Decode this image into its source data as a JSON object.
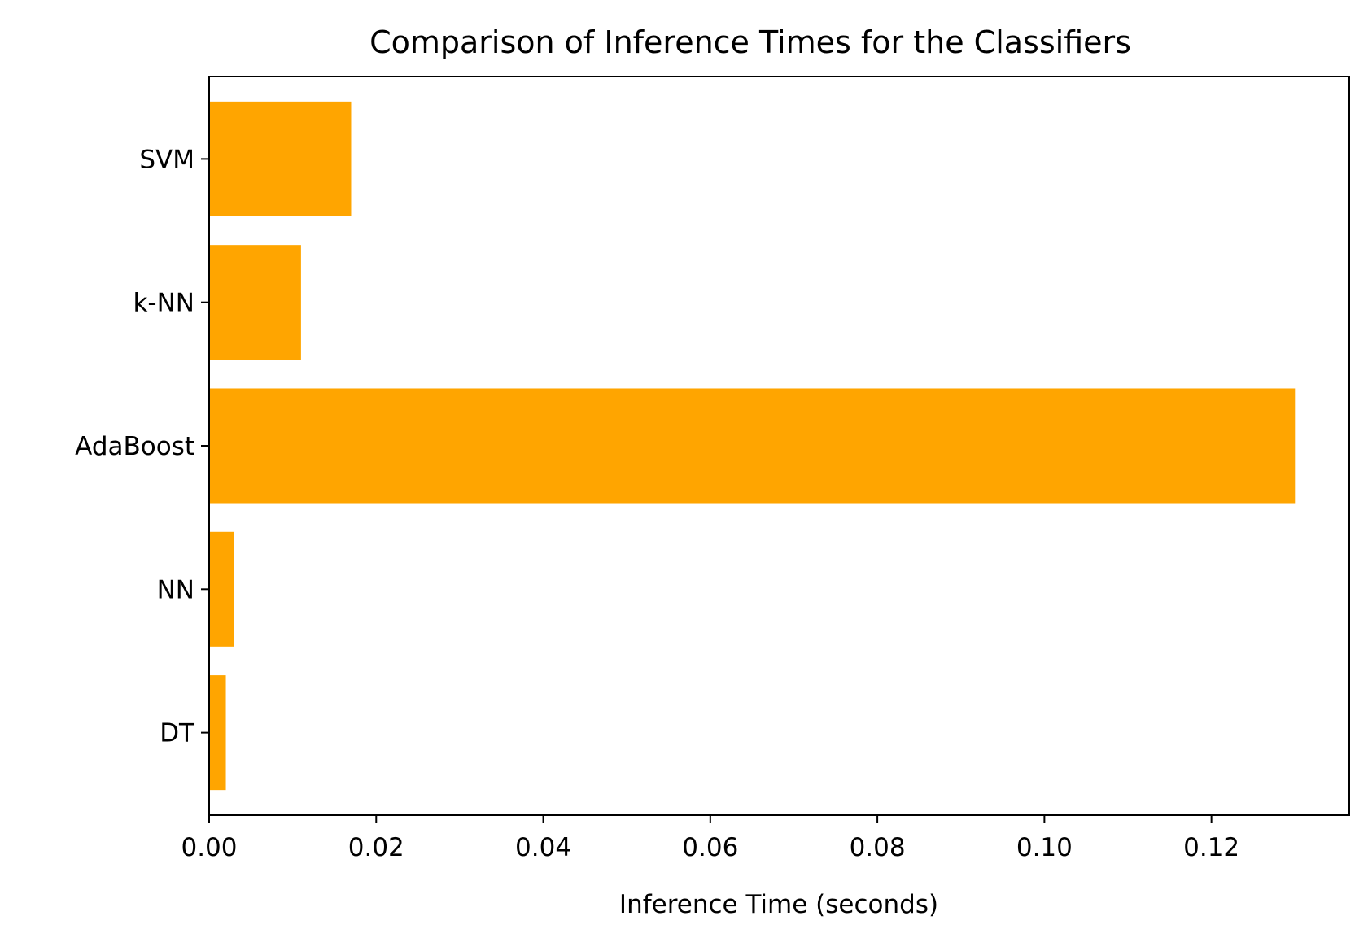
{
  "chart_data": {
    "type": "bar",
    "orientation": "horizontal",
    "title": "Comparison of Inference Times for the Classifiers",
    "xlabel": "Inference Time (seconds)",
    "ylabel": "",
    "categories": [
      "DT",
      "NN",
      "AdaBoost",
      "k-NN",
      "SVM"
    ],
    "values": [
      0.002,
      0.003,
      0.13,
      0.011,
      0.017
    ],
    "xlim": [
      0,
      0.1365
    ],
    "xticks": [
      0.0,
      0.02,
      0.04,
      0.06,
      0.08,
      0.1,
      0.12
    ],
    "xtick_labels": [
      "0.00",
      "0.02",
      "0.04",
      "0.06",
      "0.08",
      "0.10",
      "0.12"
    ],
    "bar_color": "#FFA500",
    "grid": false,
    "legend": "none"
  }
}
